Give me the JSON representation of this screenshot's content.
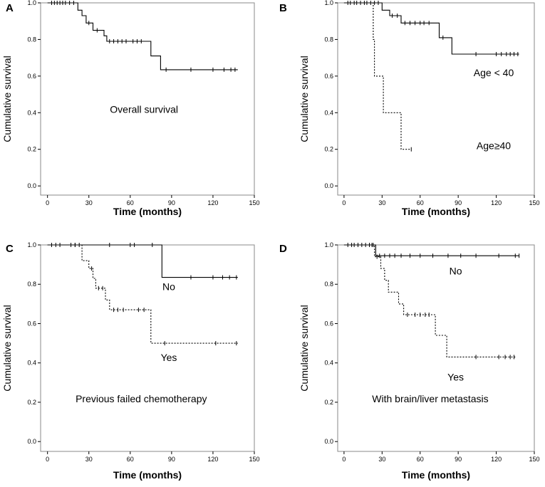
{
  "figure": {
    "panels": [
      {
        "panel_label": "A",
        "annotations": [
          {
            "text": "Overall survival",
            "x": 70,
            "y": 0.4
          }
        ]
      },
      {
        "panel_label": "B",
        "annotations": [
          {
            "text": "Age < 40",
            "x": 118,
            "y": 0.6
          },
          {
            "text": "Age≥40",
            "x": 118,
            "y": 0.2
          }
        ]
      },
      {
        "panel_label": "C",
        "annotations": [
          {
            "text": "No",
            "x": 88,
            "y": 0.77
          },
          {
            "text": "Yes",
            "x": 88,
            "y": 0.41
          },
          {
            "text": "Previous failed chemotherapy",
            "x": 68,
            "y": 0.2
          }
        ]
      },
      {
        "panel_label": "D",
        "annotations": [
          {
            "text": "No",
            "x": 88,
            "y": 0.85
          },
          {
            "text": "Yes",
            "x": 88,
            "y": 0.31
          },
          {
            "text": "With brain/liver metastasis",
            "x": 68,
            "y": 0.2
          }
        ]
      }
    ]
  },
  "chart_data": [
    {
      "type": "line",
      "subtype": "kaplan-meier",
      "title": "A",
      "xlabel": "Time (months)",
      "ylabel": "Cumulative survival",
      "xlim": [
        -5,
        150
      ],
      "ylim": [
        -0.05,
        1.0
      ],
      "xticks": [
        0,
        30,
        60,
        90,
        120,
        150
      ],
      "yticks": [
        0.0,
        0.2,
        0.4,
        0.6,
        0.8,
        1.0
      ],
      "series": [
        {
          "name": "Overall survival",
          "style": "solid",
          "steps": [
            [
              0,
              1.0
            ],
            [
              22,
              0.96
            ],
            [
              25,
              0.93
            ],
            [
              28,
              0.89
            ],
            [
              33,
              0.85
            ],
            [
              41,
              0.82
            ],
            [
              43,
              0.79
            ],
            [
              75,
              0.71
            ],
            [
              82,
              0.635
            ],
            [
              138,
              0.635
            ]
          ],
          "censored": [
            [
              3,
              1.0
            ],
            [
              5,
              1.0
            ],
            [
              7,
              1.0
            ],
            [
              9,
              1.0
            ],
            [
              11,
              1.0
            ],
            [
              13,
              1.0
            ],
            [
              16,
              1.0
            ],
            [
              19,
              1.0
            ],
            [
              30,
              0.89
            ],
            [
              36,
              0.85
            ],
            [
              45,
              0.79
            ],
            [
              48,
              0.79
            ],
            [
              51,
              0.79
            ],
            [
              54,
              0.79
            ],
            [
              57,
              0.79
            ],
            [
              62,
              0.79
            ],
            [
              65,
              0.79
            ],
            [
              68,
              0.79
            ],
            [
              86,
              0.635
            ],
            [
              104,
              0.635
            ],
            [
              120,
              0.635
            ],
            [
              128,
              0.635
            ],
            [
              133,
              0.635
            ],
            [
              136,
              0.635
            ]
          ]
        }
      ]
    },
    {
      "type": "line",
      "subtype": "kaplan-meier",
      "title": "B",
      "xlabel": "Time (months)",
      "ylabel": "Cumulative survival",
      "xlim": [
        -5,
        150
      ],
      "ylim": [
        -0.05,
        1.0
      ],
      "xticks": [
        0,
        30,
        60,
        90,
        120,
        150
      ],
      "yticks": [
        0.0,
        0.2,
        0.4,
        0.6,
        0.8,
        1.0
      ],
      "series": [
        {
          "name": "Age < 40",
          "style": "solid",
          "steps": [
            [
              0,
              1.0
            ],
            [
              30,
              0.96
            ],
            [
              36,
              0.93
            ],
            [
              45,
              0.89
            ],
            [
              75,
              0.81
            ],
            [
              85,
              0.72
            ],
            [
              138,
              0.72
            ]
          ],
          "censored": [
            [
              3,
              1.0
            ],
            [
              5,
              1.0
            ],
            [
              8,
              1.0
            ],
            [
              10,
              1.0
            ],
            [
              13,
              1.0
            ],
            [
              16,
              1.0
            ],
            [
              18,
              1.0
            ],
            [
              21,
              1.0
            ],
            [
              24,
              1.0
            ],
            [
              27,
              1.0
            ],
            [
              38,
              0.93
            ],
            [
              42,
              0.93
            ],
            [
              48,
              0.89
            ],
            [
              52,
              0.89
            ],
            [
              56,
              0.89
            ],
            [
              60,
              0.89
            ],
            [
              63,
              0.89
            ],
            [
              67,
              0.89
            ],
            [
              78,
              0.81
            ],
            [
              104,
              0.72
            ],
            [
              120,
              0.72
            ],
            [
              124,
              0.72
            ],
            [
              128,
              0.72
            ],
            [
              131,
              0.72
            ],
            [
              134,
              0.72
            ],
            [
              137,
              0.72
            ]
          ]
        },
        {
          "name": "Age≥40",
          "style": "dotted",
          "steps": [
            [
              0,
              1.0
            ],
            [
              23,
              0.8
            ],
            [
              24,
              0.6
            ],
            [
              31,
              0.4
            ],
            [
              45,
              0.2
            ],
            [
              53,
              0.2
            ]
          ],
          "censored": [
            [
              53,
              0.2
            ]
          ]
        }
      ]
    },
    {
      "type": "line",
      "subtype": "kaplan-meier",
      "title": "C",
      "xlabel": "Time (months)",
      "ylabel": "Cumulative survival",
      "xlim": [
        -5,
        150
      ],
      "ylim": [
        -0.05,
        1.0
      ],
      "xticks": [
        0,
        30,
        60,
        90,
        120,
        150
      ],
      "yticks": [
        0.0,
        0.2,
        0.4,
        0.6,
        0.8,
        1.0
      ],
      "series": [
        {
          "name": "No",
          "style": "solid",
          "steps": [
            [
              0,
              1.0
            ],
            [
              83,
              0.835
            ],
            [
              138,
              0.835
            ]
          ],
          "censored": [
            [
              3,
              1.0
            ],
            [
              6,
              1.0
            ],
            [
              9,
              1.0
            ],
            [
              17,
              1.0
            ],
            [
              20,
              1.0
            ],
            [
              45,
              1.0
            ],
            [
              60,
              1.0
            ],
            [
              63,
              1.0
            ],
            [
              76,
              1.0
            ],
            [
              104,
              0.835
            ],
            [
              120,
              0.835
            ],
            [
              127,
              0.835
            ],
            [
              132,
              0.835
            ],
            [
              137,
              0.835
            ]
          ]
        },
        {
          "name": "Yes",
          "style": "dotted",
          "steps": [
            [
              0,
              1.0
            ],
            [
              25,
              0.92
            ],
            [
              30,
              0.88
            ],
            [
              33,
              0.83
            ],
            [
              35,
              0.78
            ],
            [
              42,
              0.72
            ],
            [
              45,
              0.67
            ],
            [
              75,
              0.5
            ],
            [
              138,
              0.5
            ]
          ],
          "censored": [
            [
              20,
              1.0
            ],
            [
              23,
              1.0
            ],
            [
              32,
              0.88
            ],
            [
              37,
              0.78
            ],
            [
              40,
              0.78
            ],
            [
              48,
              0.67
            ],
            [
              51,
              0.67
            ],
            [
              55,
              0.67
            ],
            [
              66,
              0.67
            ],
            [
              70,
              0.67
            ],
            [
              85,
              0.5
            ],
            [
              122,
              0.5
            ],
            [
              137,
              0.5
            ]
          ]
        }
      ]
    },
    {
      "type": "line",
      "subtype": "kaplan-meier",
      "title": "D",
      "xlabel": "Time (months)",
      "ylabel": "Cumulative survival",
      "xlim": [
        -5,
        150
      ],
      "ylim": [
        -0.05,
        1.0
      ],
      "xticks": [
        0,
        30,
        60,
        90,
        120,
        150
      ],
      "yticks": [
        0.0,
        0.2,
        0.4,
        0.6,
        0.8,
        1.0
      ],
      "series": [
        {
          "name": "No",
          "style": "solid",
          "steps": [
            [
              0,
              1.0
            ],
            [
              25,
              0.945
            ],
            [
              138,
              0.945
            ]
          ],
          "censored": [
            [
              3,
              1.0
            ],
            [
              6,
              1.0
            ],
            [
              8,
              1.0
            ],
            [
              11,
              1.0
            ],
            [
              14,
              1.0
            ],
            [
              17,
              1.0
            ],
            [
              20,
              1.0
            ],
            [
              23,
              1.0
            ],
            [
              28,
              0.945
            ],
            [
              32,
              0.945
            ],
            [
              36,
              0.945
            ],
            [
              40,
              0.945
            ],
            [
              45,
              0.945
            ],
            [
              52,
              0.945
            ],
            [
              60,
              0.945
            ],
            [
              70,
              0.945
            ],
            [
              82,
              0.945
            ],
            [
              92,
              0.945
            ],
            [
              104,
              0.945
            ],
            [
              122,
              0.945
            ],
            [
              135,
              0.945
            ],
            [
              138,
              0.945
            ]
          ]
        },
        {
          "name": "Yes",
          "style": "dotted",
          "steps": [
            [
              0,
              1.0
            ],
            [
              24,
              0.94
            ],
            [
              29,
              0.88
            ],
            [
              32,
              0.82
            ],
            [
              35,
              0.76
            ],
            [
              43,
              0.7
            ],
            [
              47,
              0.645
            ],
            [
              72,
              0.54
            ],
            [
              81,
              0.43
            ],
            [
              135,
              0.43
            ]
          ],
          "censored": [
            [
              22,
              1.0
            ],
            [
              26,
              0.94
            ],
            [
              50,
              0.645
            ],
            [
              56,
              0.645
            ],
            [
              60,
              0.645
            ],
            [
              64,
              0.645
            ],
            [
              67,
              0.645
            ],
            [
              104,
              0.43
            ],
            [
              122,
              0.43
            ],
            [
              127,
              0.43
            ],
            [
              131,
              0.43
            ],
            [
              134,
              0.43
            ]
          ]
        }
      ]
    }
  ]
}
